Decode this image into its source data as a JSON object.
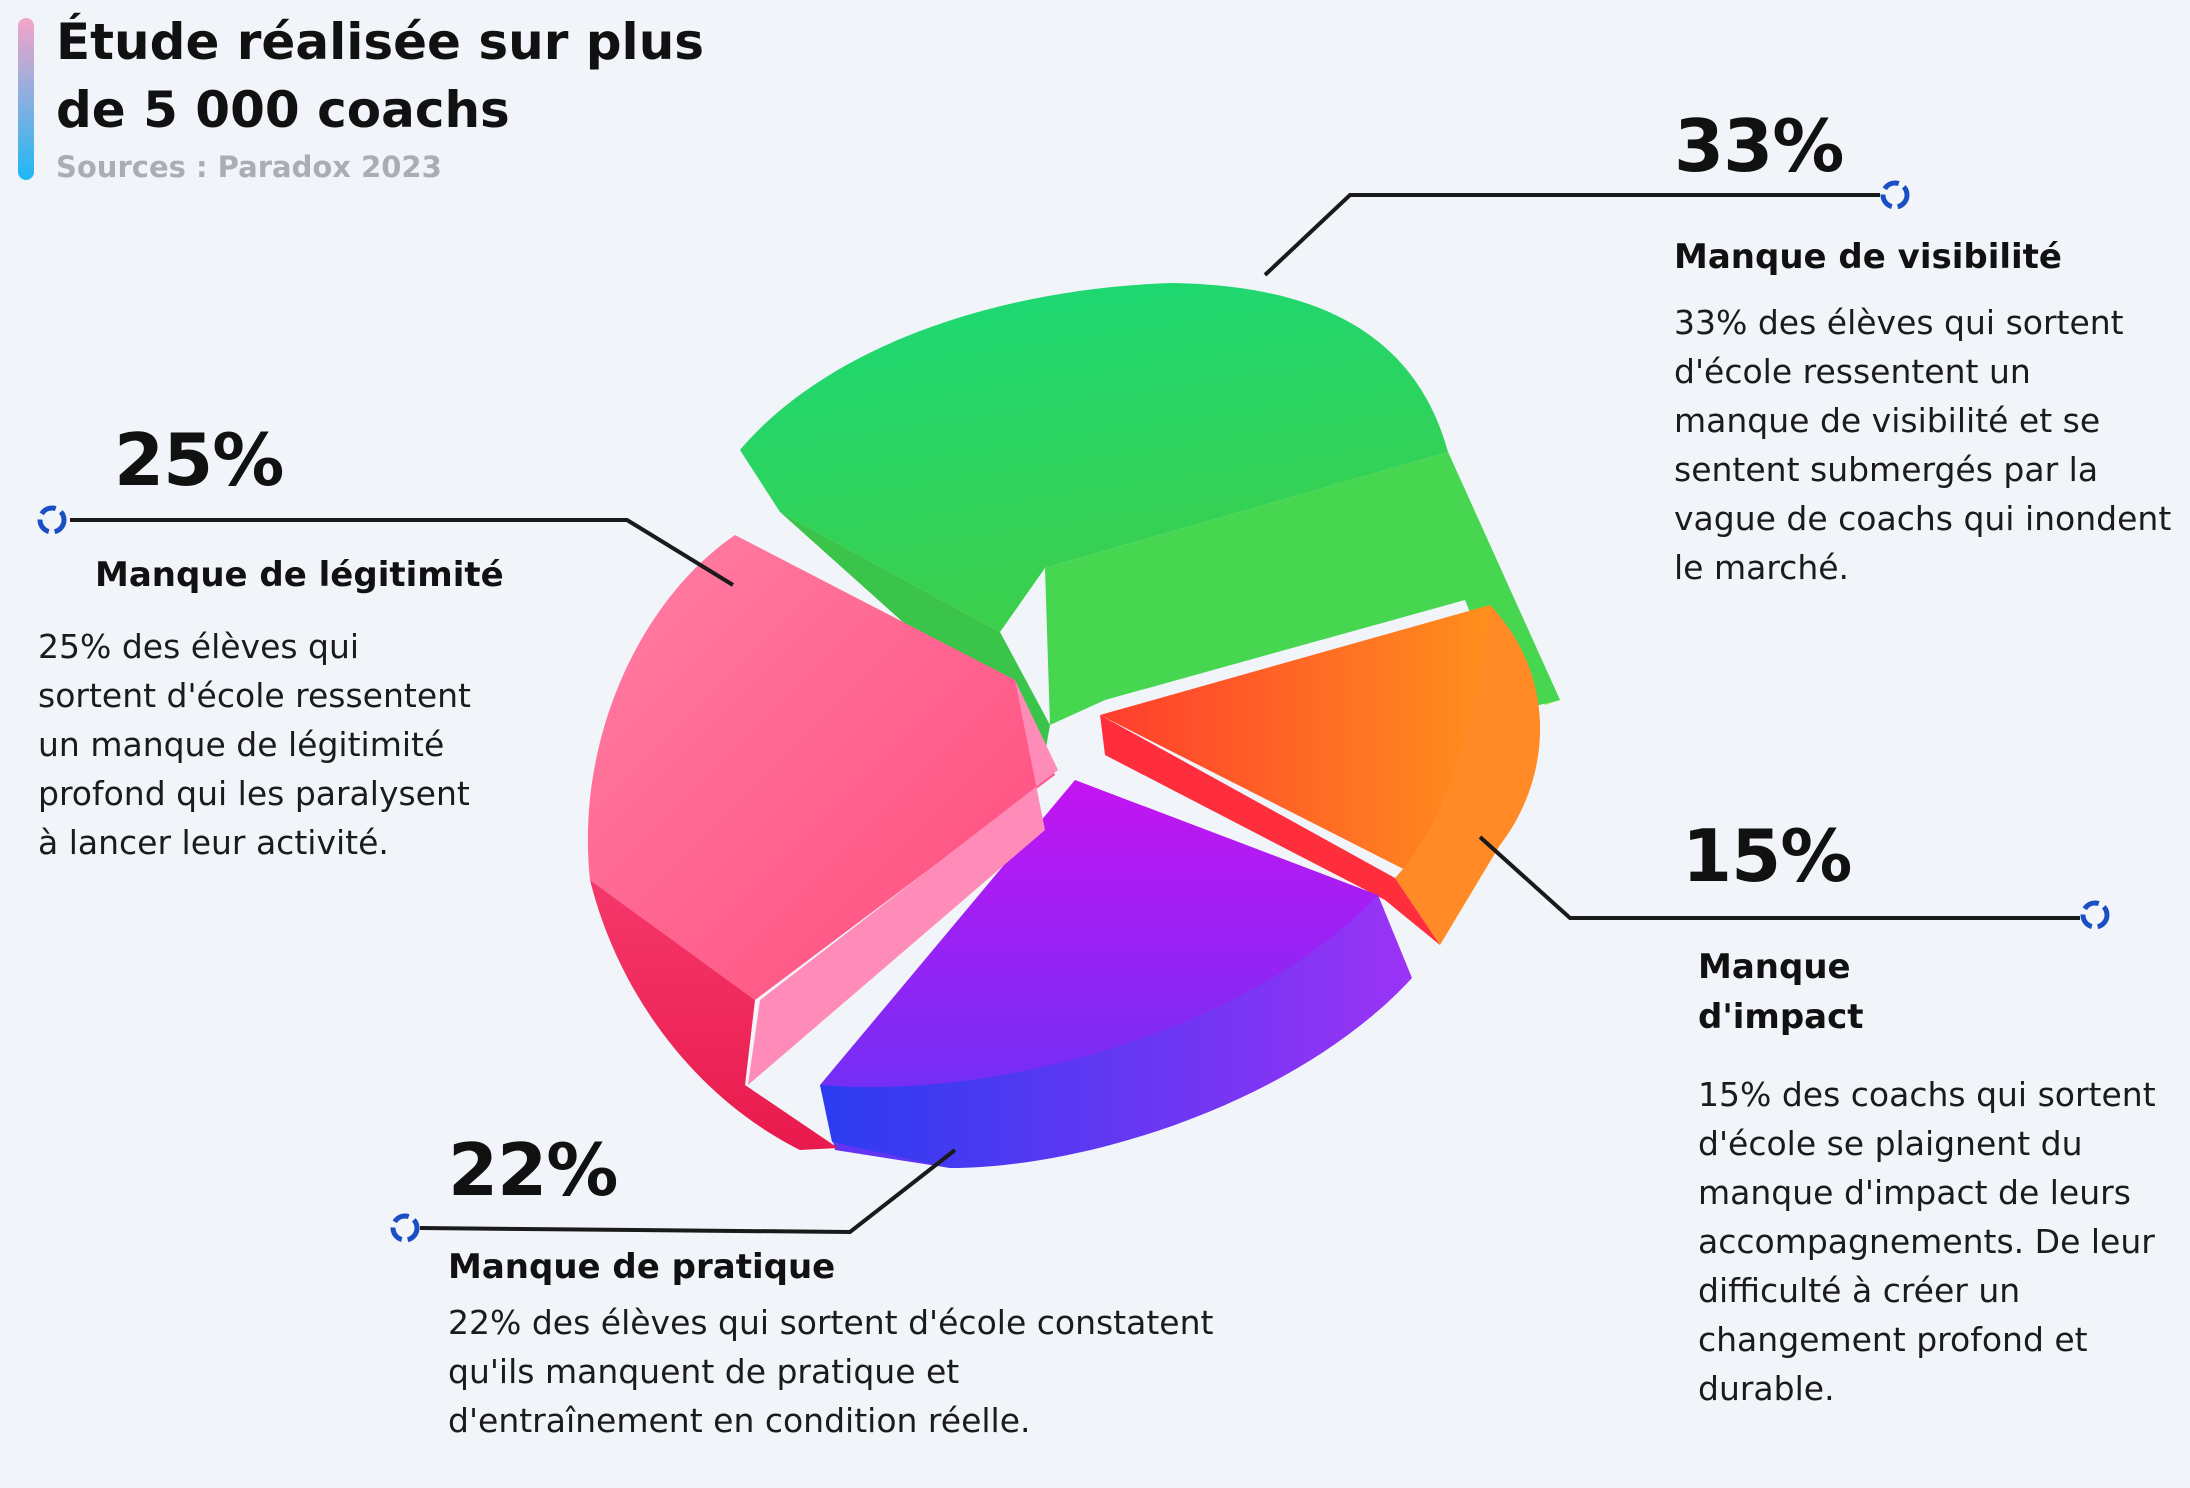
{
  "header": {
    "title": "Étude réalisée sur plus de 5 000 coachs",
    "source": "Sources : Paradox 2023"
  },
  "chart_data": {
    "type": "pie",
    "title": "Étude réalisée sur plus de 5 000 coachs",
    "slices": [
      {
        "label": "Manque de visibilité",
        "value": 33,
        "percent_label": "33%",
        "color": "#1ed36d",
        "description": "33% des élèves qui sortent d'école ressentent un manque de visibilité et se sentent submergés par la vague de coachs qui inondent le marché."
      },
      {
        "label": "Manque d'impact",
        "value": 15,
        "percent_label": "15%",
        "color": "#ff7a1a",
        "description": "15% des coachs qui sortent d'école se plaignent du manque d'impact de leurs accompagnements. De leur difficulté à créer un changement profond et durable."
      },
      {
        "label": "Manque de pratique",
        "value": 22,
        "percent_label": "22%",
        "color": "#8a2cf0",
        "description": "22% des élèves qui sortent d'école constatent qu'ils manquent de pratique et d'entraînement en condition réelle."
      },
      {
        "label": "Manque de légitimité",
        "value": 25,
        "percent_label": "25%",
        "color": "#ff4f86",
        "description": "25% des élèves qui sortent d'école ressentent un manque de légitimité profond qui les paralysent à lancer leur activité."
      }
    ]
  },
  "colors": {
    "accent_bar_top": "#f5a5c9",
    "accent_bar_bottom": "#1fb8f5",
    "connector_dot": "#1a4fc4",
    "leader_line": "#1a1a1a"
  }
}
